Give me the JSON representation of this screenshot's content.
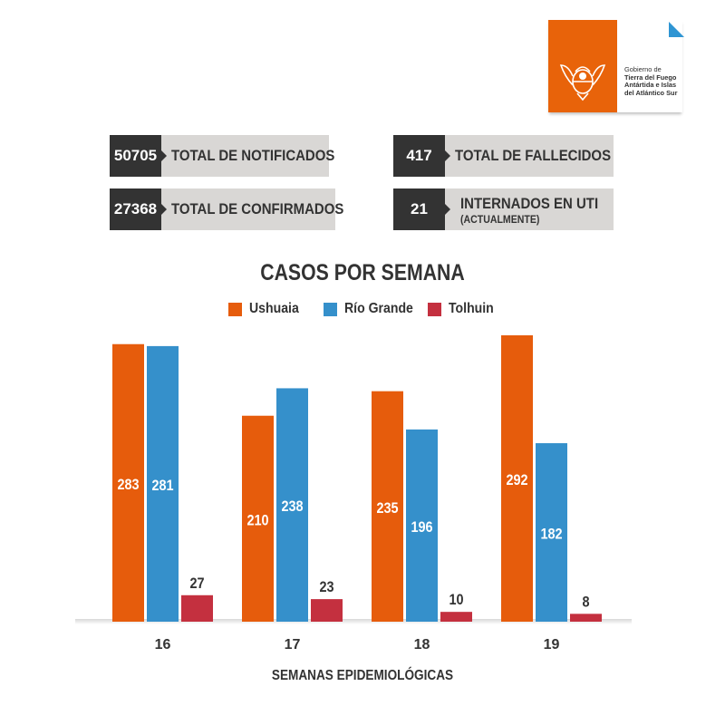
{
  "header": {
    "logo_lines": [
      "Gobierno de",
      "Tierra del Fuego",
      "Antártida e Islas",
      "del Atlántico Sur"
    ],
    "logo_color": "#e8630a",
    "accent_triangle_color": "#2f95d3"
  },
  "stats": [
    {
      "value": "50705",
      "label": "TOTAL DE NOTIFICADOS"
    },
    {
      "value": "27368",
      "label": "TOTAL DE CONFIRMADOS"
    },
    {
      "value": "417",
      "label": "TOTAL DE FALLECIDOS"
    },
    {
      "value": "21",
      "label": "INTERNADOS EN UTI",
      "sublabel": "(ACTUALMENTE)"
    }
  ],
  "chart_data": {
    "type": "bar",
    "title": "CASOS POR SEMANA",
    "xlabel": "SEMANAS EPIDEMIOLÓGICAS",
    "ylabel": "",
    "categories": [
      "16",
      "17",
      "18",
      "19"
    ],
    "ylim": [
      0,
      300
    ],
    "grid": false,
    "legend_position": "top-center",
    "series": [
      {
        "name": "Ushuaia",
        "color": "#e65c0c",
        "values": [
          283,
          210,
          235,
          292
        ]
      },
      {
        "name": "Río Grande",
        "color": "#3590cb",
        "values": [
          281,
          238,
          196,
          182
        ]
      },
      {
        "name": "Tolhuin",
        "color": "#c4303f",
        "values": [
          27,
          23,
          10,
          8
        ]
      }
    ]
  }
}
